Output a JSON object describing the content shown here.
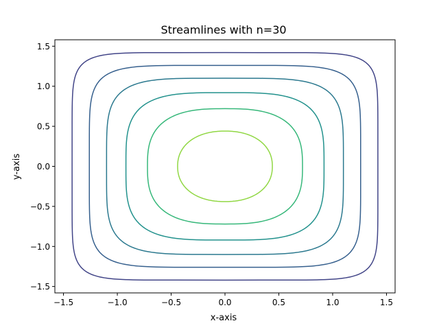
{
  "chart_data": {
    "type": "line",
    "title": "Streamlines with n=30",
    "xlabel": "x-axis",
    "ylabel": "y-axis",
    "xlim": [
      -1.58,
      1.58
    ],
    "ylim": [
      -1.58,
      1.58
    ],
    "xticks": [
      -1.5,
      -1.0,
      -0.5,
      0.0,
      0.5,
      1.0,
      1.5
    ],
    "yticks": [
      -1.5,
      -1.0,
      -0.5,
      0.0,
      0.5,
      1.0,
      1.5
    ],
    "xtick_labels": [
      "−1.5",
      "−1.0",
      "−0.5",
      "0.0",
      "0.5",
      "1.0",
      "1.5"
    ],
    "ytick_labels": [
      "−1.5",
      "−1.0",
      "−0.5",
      "0.0",
      "0.5",
      "1.0",
      "1.5"
    ],
    "grid": false,
    "legend": "none",
    "series": [
      {
        "x_extent": 1.42,
        "y_extent": 1.42,
        "shape_exponent": 8.0,
        "color": "#414487"
      },
      {
        "x_extent": 1.26,
        "y_extent": 1.26,
        "shape_exponent": 6.0,
        "color": "#355f8d"
      },
      {
        "x_extent": 1.1,
        "y_extent": 1.1,
        "shape_exponent": 4.6,
        "color": "#2a788e"
      },
      {
        "x_extent": 0.92,
        "y_extent": 0.92,
        "shape_exponent": 3.6,
        "color": "#21918c"
      },
      {
        "x_extent": 0.72,
        "y_extent": 0.72,
        "shape_exponent": 2.8,
        "color": "#35b779"
      },
      {
        "x_extent": 0.44,
        "y_extent": 0.44,
        "shape_exponent": 2.2,
        "color": "#90d743"
      }
    ]
  }
}
